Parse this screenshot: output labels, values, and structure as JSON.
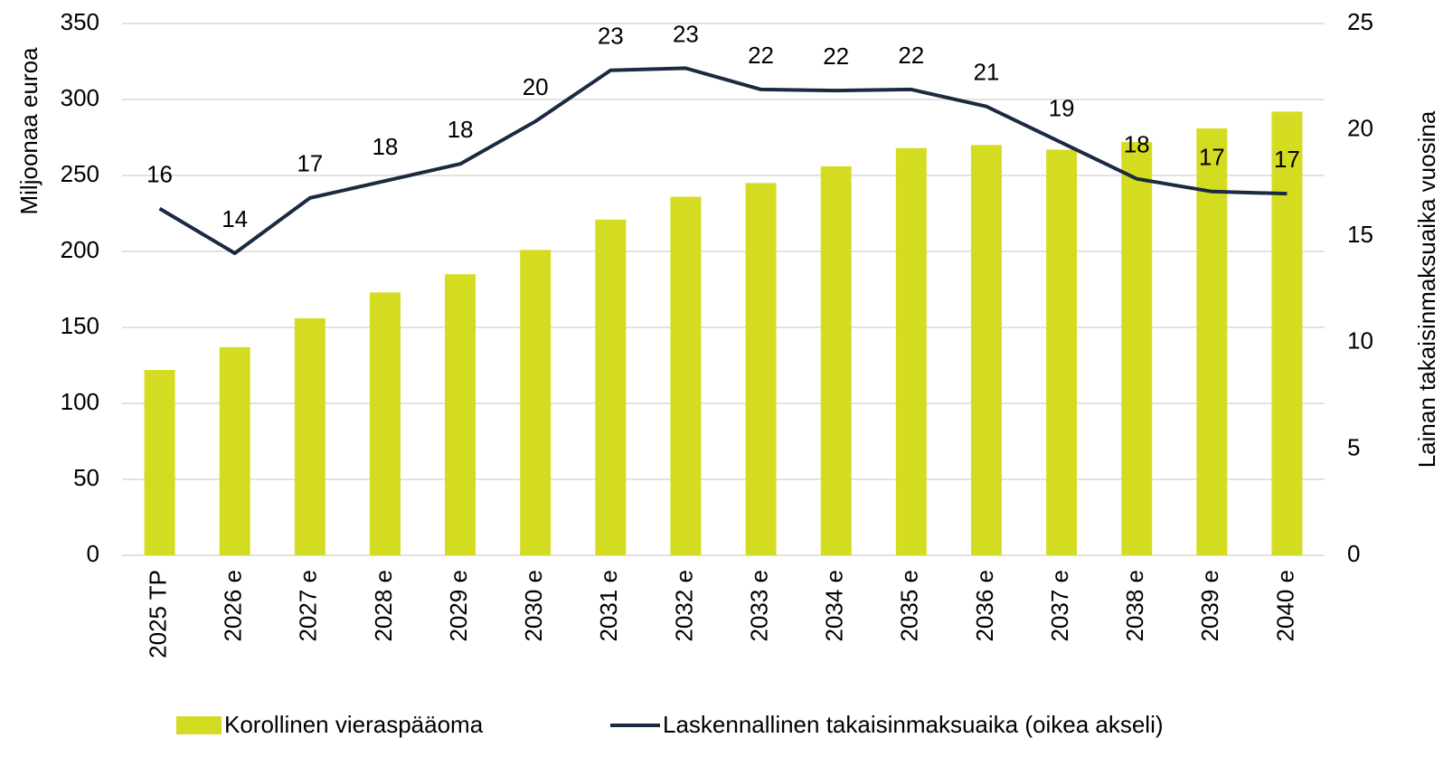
{
  "chart_data": {
    "type": "bar_line",
    "y_axis_label": "Miljoonaa euroa",
    "y2_axis_label": "Lainan takaisinmaksuaika vuosina",
    "categories": [
      "2025 TP",
      "2026 e",
      "2027 e",
      "2028 e",
      "2029 e",
      "2030 e",
      "2031 e",
      "2032 e",
      "2033 e",
      "2034 e",
      "2035 e",
      "2036 e",
      "2037 e",
      "2038 e",
      "2039 e",
      "2040 e"
    ],
    "series": [
      {
        "name": "Korollinen vieraspääoma",
        "type": "bar",
        "color": "#d4dc22",
        "values": [
          122,
          137,
          156,
          173,
          185,
          201,
          221,
          236,
          245,
          256,
          268,
          270,
          267,
          272,
          281,
          292
        ]
      },
      {
        "name": "Laskennallinen takaisinmaksuaika (oikea akseli)",
        "type": "line",
        "axis": "y2",
        "color": "#1b2a41",
        "values": [
          16.3,
          14.2,
          16.8,
          17.6,
          18.4,
          20.4,
          22.8,
          22.9,
          21.9,
          21.85,
          21.9,
          21.1,
          19.4,
          17.7,
          17.1,
          17.0
        ],
        "value_labels": [
          "16",
          "14",
          "17",
          "18",
          "18",
          "20",
          "23",
          "23",
          "22",
          "22",
          "22",
          "21",
          "19",
          "18",
          "17",
          "17"
        ]
      }
    ],
    "ylim": [
      0,
      350
    ],
    "yticks": [
      0,
      50,
      100,
      150,
      200,
      250,
      300,
      350
    ],
    "y2lim": [
      0,
      25
    ],
    "y2ticks": [
      0,
      5,
      10,
      15,
      20,
      25
    ],
    "grid": true,
    "legend": "bottom"
  }
}
